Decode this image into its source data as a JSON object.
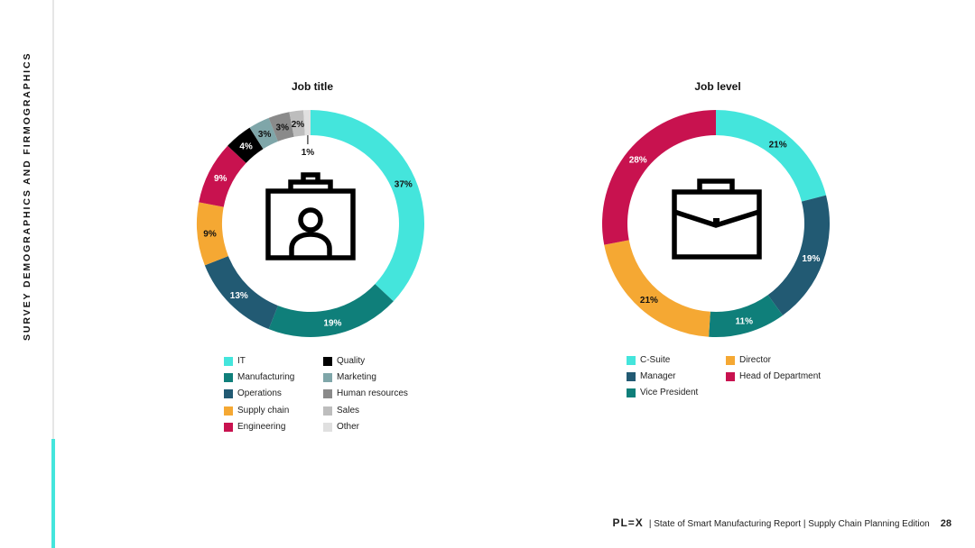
{
  "page": {
    "side_title": "SURVEY DEMOGRAPHICS AND FIRMOGRAPHICS",
    "footer": {
      "logo": "PL=X",
      "text": "|  State of Smart Manufacturing Report  |  Supply Chain Planning Edition",
      "page_number": "28"
    }
  },
  "chart_data": [
    {
      "type": "pie",
      "donut": true,
      "title": "Job title",
      "icon": "id-badge-icon",
      "slices": [
        {
          "name": "IT",
          "value": 37,
          "label": "37%",
          "color": "#44e5dc"
        },
        {
          "name": "Manufacturing",
          "value": 19,
          "label": "19%",
          "color": "#0f7f7a"
        },
        {
          "name": "Operations",
          "value": 13,
          "label": "13%",
          "color": "#225a73"
        },
        {
          "name": "Supply chain",
          "value": 9,
          "label": "9%",
          "color": "#f5a833"
        },
        {
          "name": "Engineering",
          "value": 9,
          "label": "9%",
          "color": "#c8124f"
        },
        {
          "name": "Quality",
          "value": 4,
          "label": "4%",
          "color": "#000000"
        },
        {
          "name": "Marketing",
          "value": 3,
          "label": "3%",
          "color": "#7fa6a9"
        },
        {
          "name": "Human resources",
          "value": 3,
          "label": "3%",
          "color": "#8a8a8a"
        },
        {
          "name": "Sales",
          "value": 2,
          "label": "2%",
          "color": "#bdbdbd"
        },
        {
          "name": "Other",
          "value": 1,
          "label": "1%",
          "color": "#e0e0e0"
        }
      ],
      "legend_columns": [
        [
          "IT",
          "Manufacturing",
          "Operations",
          "Supply chain",
          "Engineering"
        ],
        [
          "Quality",
          "Marketing",
          "Human resources",
          "Sales",
          "Other"
        ]
      ]
    },
    {
      "type": "pie",
      "donut": true,
      "title": "Job level",
      "icon": "briefcase-icon",
      "slices": [
        {
          "name": "C-Suite",
          "value": 21,
          "label": "21%",
          "color": "#44e5dc"
        },
        {
          "name": "Manager",
          "value": 19,
          "label": "19%",
          "color": "#225a73"
        },
        {
          "name": "Vice President",
          "value": 11,
          "label": "11%",
          "color": "#0f7f7a"
        },
        {
          "name": "Director",
          "value": 21,
          "label": "21%",
          "color": "#f5a833"
        },
        {
          "name": "Head of Department",
          "value": 28,
          "label": "28%",
          "color": "#c8124f"
        }
      ],
      "legend_columns": [
        [
          "C-Suite",
          "Manager",
          "Vice President"
        ],
        [
          "Director",
          "Head of Department"
        ]
      ]
    }
  ]
}
